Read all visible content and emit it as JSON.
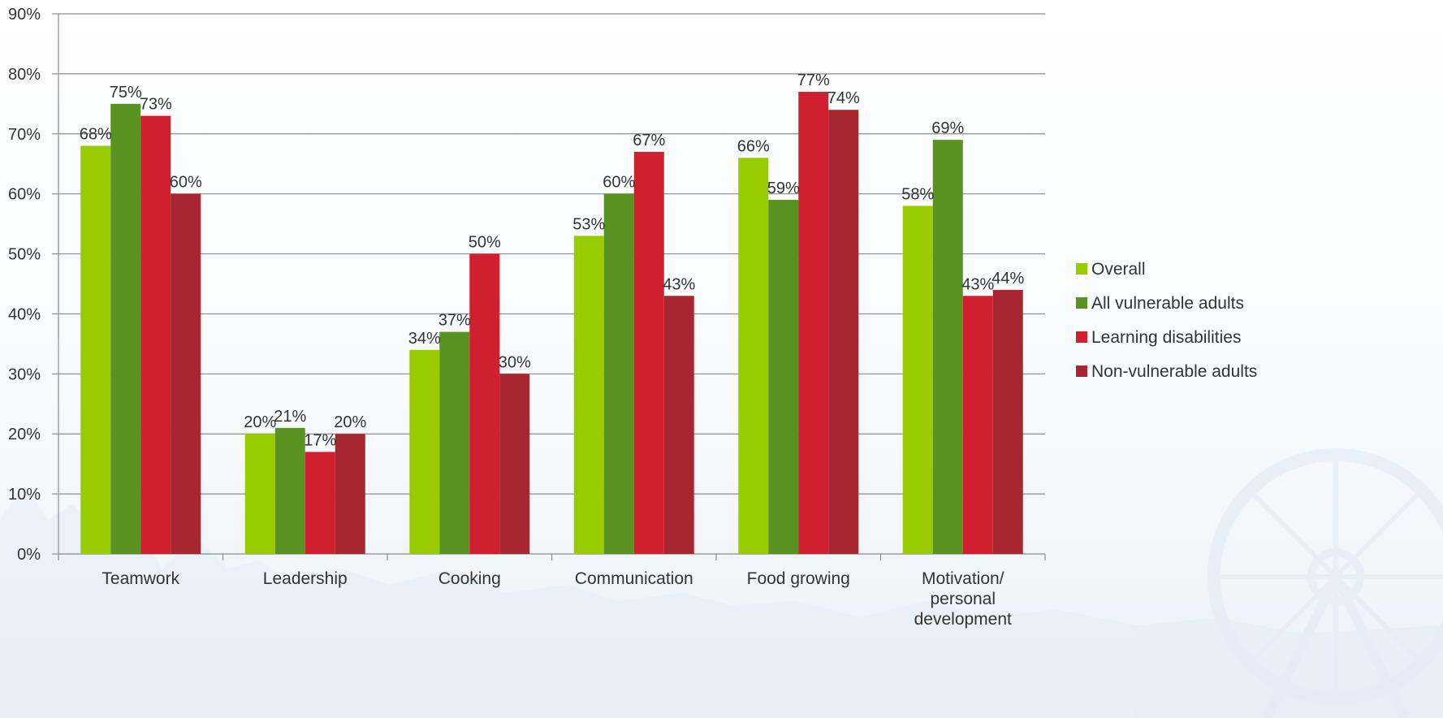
{
  "chart_data": {
    "type": "bar",
    "title": "",
    "xlabel": "",
    "ylabel": "",
    "ylim": [
      0,
      90
    ],
    "yticks": [
      "0%",
      "10%",
      "20%",
      "30%",
      "40%",
      "50%",
      "60%",
      "70%",
      "80%",
      "90%"
    ],
    "grid": true,
    "legend_position": "right",
    "categories": [
      [
        "Teamwork"
      ],
      [
        "Leadership"
      ],
      [
        "Cooking"
      ],
      [
        "Communication"
      ],
      [
        "Food growing"
      ],
      [
        "Motivation/",
        "personal",
        "development"
      ]
    ],
    "series": [
      {
        "name": "Overall",
        "color": "#99cc00",
        "values": [
          68,
          20,
          34,
          53,
          66,
          58
        ],
        "labels": [
          "68%",
          "20%",
          "34%",
          "53%",
          "66%",
          "58%"
        ]
      },
      {
        "name": "All vulnerable adults",
        "color": "#5a9222",
        "values": [
          75,
          21,
          37,
          60,
          59,
          69
        ],
        "labels": [
          "75%",
          "21%",
          "37%",
          "60%",
          "59%",
          "69%"
        ]
      },
      {
        "name": "Learning disabilities",
        "color": "#d01f2e",
        "values": [
          73,
          17,
          50,
          67,
          77,
          43
        ],
        "labels": [
          "73%",
          "17%",
          "50%",
          "67%",
          "77%",
          "43%"
        ]
      },
      {
        "name": "Non-vulnerable adults",
        "color": "#a8262f",
        "values": [
          60,
          20,
          30,
          43,
          74,
          44
        ],
        "labels": [
          "60%",
          "20%",
          "30%",
          "43%",
          "74%",
          "44%"
        ]
      }
    ]
  }
}
